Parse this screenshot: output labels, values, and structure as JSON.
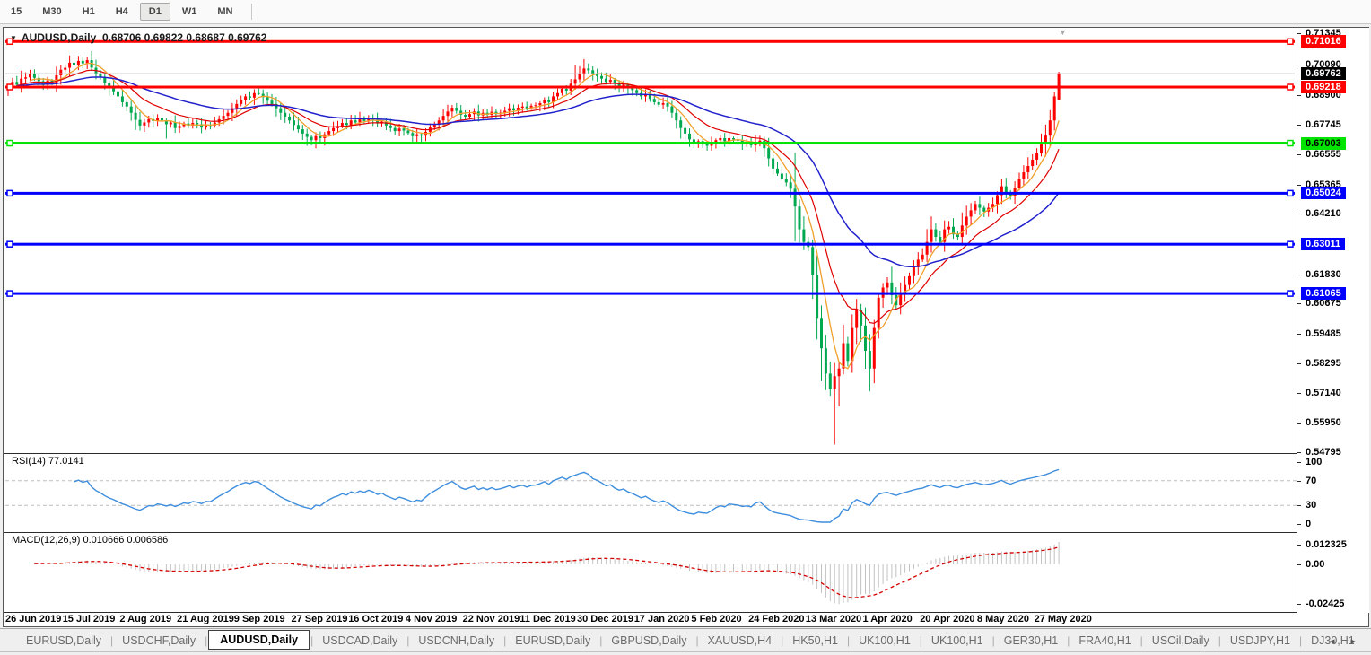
{
  "toolbar": {
    "items": [
      "15",
      "M30",
      "H1",
      "H4",
      "D1",
      "W1",
      "MN"
    ],
    "active": "D1"
  },
  "chart": {
    "title_symbol": "AUDUSD,Daily",
    "title_ohlc": "0.68706 0.69822 0.68687 0.69762"
  },
  "rsi": {
    "label_text": "RSI(14) 77.0141",
    "current": 77.0141
  },
  "macd": {
    "label_text": "MACD(12,26,9) 0.010666 0.006586",
    "main": 0.010666,
    "signal": 0.006586
  },
  "icons": {
    "title_dropdown": "▼",
    "shift_marker": "▼",
    "tab_prev": "◂",
    "tab_next": "▸",
    "tab_separator": "|"
  },
  "tabs": {
    "items": [
      "EURUSD,Daily",
      "USDCHF,Daily",
      "AUDUSD,Daily",
      "USDCAD,Daily",
      "USDCNH,Daily",
      "EURUSD,Daily",
      "GBPUSD,Daily",
      "XAUUSD,H4",
      "HK50,H1",
      "UK100,H1",
      "UK100,H1",
      "GER30,H1",
      "FRA40,H1",
      "USOil,Daily",
      "USDJPY,H1",
      "DJ30,H1"
    ],
    "active_index": 2
  },
  "chart_data": {
    "type": "candlestick",
    "symbol": "AUDUSD",
    "timeframe": "Daily",
    "ohlc_current": {
      "open": 0.68706,
      "high": 0.69822,
      "low": 0.68687,
      "close": 0.69762
    },
    "colors": {
      "bull": "#FF0000",
      "bear": "#00A94F",
      "ma_fast": "#F0A02B",
      "ma_mid": "#E00000",
      "ma_slow": "#2222CC",
      "rsi_line": "#3E8EDE",
      "rsi_guide": "#BDBDBD",
      "macd_hist": "#C2C2C2",
      "macd_signal": "#D40000",
      "level_red": "#FF0000",
      "level_green": "#00E400",
      "level_blue": "#0000FF",
      "current_price_line": "#B8B8B8"
    },
    "levels": [
      {
        "label": "0.71016",
        "price": 0.71016,
        "color": "#FF0000",
        "text_color": "#FFFFFF"
      },
      {
        "label": "0.69218",
        "price": 0.69218,
        "color": "#FF0000",
        "text_color": "#FFFFFF"
      },
      {
        "label": "0.67003",
        "price": 0.67003,
        "color": "#00E400",
        "text_color": "#000000"
      },
      {
        "label": "0.65024",
        "price": 0.65024,
        "color": "#0000FF",
        "text_color": "#FFFFFF"
      },
      {
        "label": "0.63011",
        "price": 0.63011,
        "color": "#0000FF",
        "text_color": "#FFFFFF"
      },
      {
        "label": "0.61065",
        "price": 0.61065,
        "color": "#0000FF",
        "text_color": "#FFFFFF"
      }
    ],
    "current_price": {
      "label": "0.69762",
      "value": 0.69762,
      "box_bg": "#000000",
      "box_text": "#FFFFFF"
    },
    "y_axis_ticks": [
      "0.71345",
      "0.70090",
      "0.68900",
      "0.67745",
      "0.66555",
      "0.65365",
      "0.64210",
      "0.61830",
      "0.60675",
      "0.59485",
      "0.58295",
      "0.57140",
      "0.55950",
      "0.54795"
    ],
    "x_axis_labels": [
      "26 Jun 2019",
      "15 Jul 2019",
      "2 Aug 2019",
      "21 Aug 2019",
      "9 Sep 2019",
      "27 Sep 2019",
      "16 Oct 2019",
      "4 Nov 2019",
      "22 Nov 2019",
      "11 Dec 2019",
      "30 Dec 2019",
      "17 Jan 2020",
      "5 Feb 2020",
      "24 Feb 2020",
      "13 Mar 2020",
      "1 Apr 2020",
      "20 Apr 2020",
      "8 May 2020",
      "27 May 2020"
    ],
    "x_label_step": 13,
    "rsi_axis": [
      {
        "label": "100",
        "value": 100
      },
      {
        "label": "70",
        "value": 70
      },
      {
        "label": "30",
        "value": 30
      },
      {
        "label": "0",
        "value": 0
      }
    ],
    "rsi_guides": [
      70,
      30
    ],
    "macd_axis": [
      {
        "label": "0.012325",
        "value": 0.012325
      },
      {
        "label": "0.00",
        "value": 0
      },
      {
        "label": "-0.02425",
        "value": -0.02425
      }
    ],
    "candles": {
      "first_open": 0.6912,
      "closes": [
        0.6925,
        0.6942,
        0.6931,
        0.6955,
        0.696,
        0.6972,
        0.6958,
        0.6945,
        0.693,
        0.6948,
        0.694,
        0.6968,
        0.699,
        0.6998,
        0.7018,
        0.7008,
        0.7025,
        0.7015,
        0.7028,
        0.6998,
        0.6975,
        0.696,
        0.6938,
        0.692,
        0.6905,
        0.6885,
        0.6862,
        0.6845,
        0.682,
        0.6792,
        0.677,
        0.6782,
        0.6795,
        0.6788,
        0.68,
        0.679,
        0.6775,
        0.6782,
        0.676,
        0.6768,
        0.6778,
        0.677,
        0.678,
        0.6775,
        0.6762,
        0.6772,
        0.677,
        0.6782,
        0.6795,
        0.6808,
        0.682,
        0.6838,
        0.6855,
        0.6872,
        0.6885,
        0.688,
        0.6898,
        0.6895,
        0.6882,
        0.6868,
        0.6855,
        0.6838,
        0.682,
        0.6805,
        0.679,
        0.6772,
        0.6755,
        0.6738,
        0.6725,
        0.6712,
        0.6728,
        0.672,
        0.6735,
        0.6748,
        0.676,
        0.6768,
        0.678,
        0.6772,
        0.679,
        0.6782,
        0.6795,
        0.6788,
        0.68,
        0.6792,
        0.6778,
        0.6785,
        0.677,
        0.676,
        0.6748,
        0.6758,
        0.675,
        0.674,
        0.6728,
        0.6735,
        0.673,
        0.6745,
        0.6762,
        0.6775,
        0.679,
        0.6808,
        0.6825,
        0.684,
        0.6828,
        0.6812,
        0.6805,
        0.6815,
        0.6825,
        0.681,
        0.682,
        0.6812,
        0.6824,
        0.6815,
        0.682,
        0.6828,
        0.6838,
        0.683,
        0.684,
        0.6845,
        0.6838,
        0.6848,
        0.685,
        0.6858,
        0.687,
        0.6862,
        0.6885,
        0.6898,
        0.6915,
        0.6908,
        0.6935,
        0.6952,
        0.6975,
        0.6995,
        0.6988,
        0.6972,
        0.6965,
        0.6955,
        0.6942,
        0.695,
        0.6935,
        0.6925,
        0.6932,
        0.6918,
        0.691,
        0.6898,
        0.6885,
        0.6892,
        0.6875,
        0.6862,
        0.6852,
        0.6858,
        0.6845,
        0.682,
        0.679,
        0.676,
        0.6738,
        0.6715,
        0.67,
        0.6708,
        0.6695,
        0.669,
        0.67,
        0.6712,
        0.672,
        0.6708,
        0.672,
        0.6715,
        0.671,
        0.6698,
        0.67,
        0.6692,
        0.6705,
        0.671,
        0.668,
        0.664,
        0.66,
        0.658,
        0.656,
        0.6545,
        0.652,
        0.645,
        0.636,
        0.631,
        0.629,
        0.618,
        0.601,
        0.589,
        0.579,
        0.573,
        0.578,
        0.581,
        0.591,
        0.584,
        0.597,
        0.604,
        0.598,
        0.588,
        0.581,
        0.597,
        0.609,
        0.613,
        0.615,
        0.61,
        0.606,
        0.6105,
        0.614,
        0.6175,
        0.621,
        0.624,
        0.626,
        0.631,
        0.636,
        0.633,
        0.631,
        0.636,
        0.637,
        0.634,
        0.633,
        0.6375,
        0.641,
        0.6435,
        0.646,
        0.6445,
        0.643,
        0.6445,
        0.646,
        0.6495,
        0.653,
        0.6505,
        0.649,
        0.6525,
        0.656,
        0.6585,
        0.661,
        0.6635,
        0.666,
        0.6695,
        0.673,
        0.679,
        0.6885,
        0.6976
      ],
      "overrides": {
        "16": {
          "h": 0.7045
        },
        "18": {
          "h": 0.704
        },
        "36": {
          "l": 0.6718
        },
        "68": {
          "l": 0.669
        },
        "94": {
          "l": 0.6705
        },
        "129": {
          "h": 0.701
        },
        "131": {
          "h": 0.7032
        },
        "153": {
          "l": 0.6718
        },
        "179": {
          "h": 0.6662,
          "l": 0.6312
        },
        "183": {
          "l": 0.6085
        },
        "184": {
          "l": 0.5925
        },
        "185": {
          "l": 0.576
        },
        "188": {
          "l": 0.551
        },
        "189": {
          "l": 0.566
        },
        "193": {
          "h": 0.6085
        },
        "196": {
          "l": 0.572
        },
        "238": {
          "h": 0.6902
        },
        "239": {
          "o": 0.68706,
          "h": 0.69822,
          "l": 0.68687,
          "c": 0.69762
        }
      }
    }
  }
}
